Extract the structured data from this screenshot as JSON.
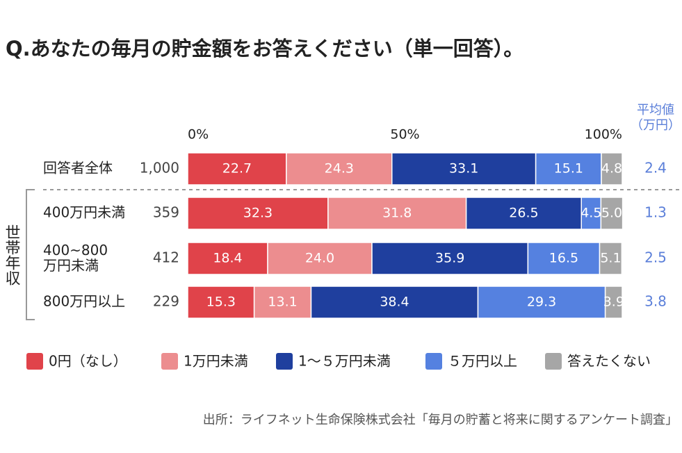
{
  "chart_data": {
    "type": "stacked-bar-horizontal",
    "title": "Q.あなたの毎月の貯金額をお答えください（単一回答）。",
    "categories": [
      "回答者全体",
      "400万円未満",
      "400~800\n万円未満",
      "800万円以上"
    ],
    "group_label": "世帯年収",
    "counts": [
      1000,
      359,
      412,
      229
    ],
    "count_labels": [
      "1,000",
      "359",
      "412",
      "229"
    ],
    "average_title": "平均値\n（万円）",
    "averages": [
      2.4,
      1.3,
      2.5,
      3.8
    ],
    "xlim": [
      0,
      100
    ],
    "xticks": [
      {
        "value": 0,
        "label": "0%"
      },
      {
        "value": 50,
        "label": "50%"
      },
      {
        "value": 100,
        "label": "100%"
      }
    ],
    "series": [
      {
        "name": "0円（なし）",
        "color": "#e0434a",
        "values": [
          22.7,
          32.3,
          18.4,
          15.3
        ]
      },
      {
        "name": "1万円未満",
        "color": "#ec8d8f",
        "values": [
          24.3,
          31.8,
          24.0,
          13.1
        ],
        "value_labels": [
          "24.3",
          "31.8",
          "24.0",
          "13.1"
        ]
      },
      {
        "name": "1〜５万円未満",
        "color": "#1f3f9e",
        "values": [
          33.1,
          26.5,
          35.9,
          38.4
        ]
      },
      {
        "name": "５万円以上",
        "color": "#5581e0",
        "values": [
          15.1,
          4.5,
          16.5,
          29.3
        ]
      },
      {
        "name": "答えたくない",
        "color": "#a6a6a6",
        "values": [
          4.8,
          5.0,
          5.1,
          3.9
        ],
        "value_labels": [
          "4.8",
          "5.0",
          "5.1",
          "3.9"
        ]
      }
    ],
    "source": "出所：ライフネット生命保険株式会社「毎月の貯蓄と将来に関するアンケート調査」"
  }
}
